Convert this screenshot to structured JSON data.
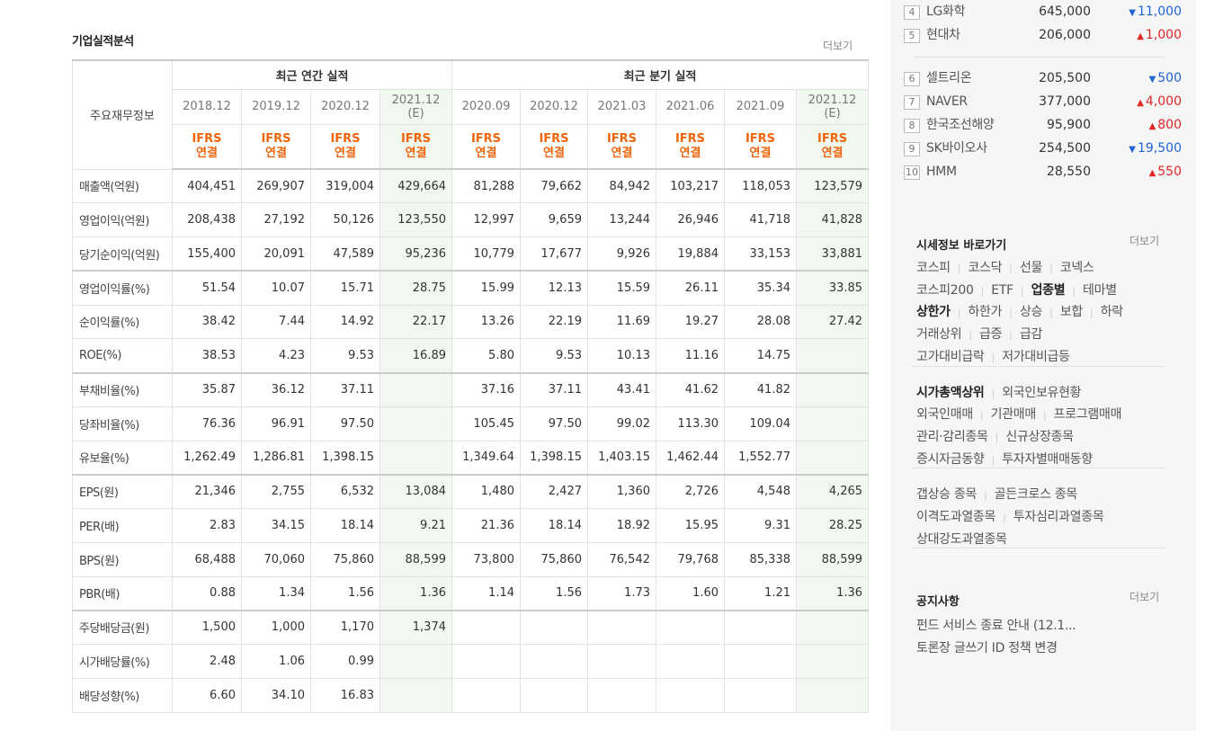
{
  "section": {
    "title": "기업실적분석",
    "more": "더보기"
  },
  "table": {
    "corner": "주요재무정보",
    "groups": [
      {
        "title": "최근 연간 실적",
        "span": 4
      },
      {
        "title": "최근 분기 실적",
        "span": 6
      }
    ],
    "periods": [
      [
        "2018.12"
      ],
      [
        "2019.12"
      ],
      [
        "2020.12"
      ],
      [
        "2021.12",
        "(E)"
      ],
      [
        "2020.09"
      ],
      [
        "2020.12"
      ],
      [
        "2021.03"
      ],
      [
        "2021.06"
      ],
      [
        "2021.09"
      ],
      [
        "2021.12",
        "(E)"
      ]
    ],
    "estimate": [
      false,
      false,
      false,
      true,
      false,
      false,
      false,
      false,
      false,
      true
    ],
    "basis": [
      "IFRS",
      "연결"
    ],
    "rows": [
      {
        "label": "매출액(억원)",
        "values": [
          "404,451",
          "269,907",
          "319,004",
          "429,664",
          "81,288",
          "79,662",
          "84,942",
          "103,217",
          "118,053",
          "123,579"
        ]
      },
      {
        "label": "영업이익(억원)",
        "values": [
          "208,438",
          "27,192",
          "50,126",
          "123,550",
          "12,997",
          "9,659",
          "13,244",
          "26,946",
          "41,718",
          "41,828"
        ]
      },
      {
        "label": "당기순이익(억원)",
        "values": [
          "155,400",
          "20,091",
          "47,589",
          "95,236",
          "10,779",
          "17,677",
          "9,926",
          "19,884",
          "33,153",
          "33,881"
        ],
        "group_end": true
      },
      {
        "label": "영업이익률(%)",
        "values": [
          "51.54",
          "10.07",
          "15.71",
          "28.75",
          "15.99",
          "12.13",
          "15.59",
          "26.11",
          "35.34",
          "33.85"
        ]
      },
      {
        "label": "순이익률(%)",
        "values": [
          "38.42",
          "7.44",
          "14.92",
          "22.17",
          "13.26",
          "22.19",
          "11.69",
          "19.27",
          "28.08",
          "27.42"
        ]
      },
      {
        "label": "ROE(%)",
        "values": [
          "38.53",
          "4.23",
          "9.53",
          "16.89",
          "5.80",
          "9.53",
          "10.13",
          "11.16",
          "14.75",
          null
        ],
        "group_end": true
      },
      {
        "label": "부채비율(%)",
        "values": [
          "35.87",
          "36.12",
          "37.11",
          null,
          "37.16",
          "37.11",
          "43.41",
          "41.62",
          "41.82",
          null
        ]
      },
      {
        "label": "당좌비율(%)",
        "values": [
          "76.36",
          "96.91",
          "97.50",
          null,
          "105.45",
          "97.50",
          "99.02",
          "113.30",
          "109.04",
          null
        ]
      },
      {
        "label": "유보율(%)",
        "values": [
          "1,262.49",
          "1,286.81",
          "1,398.15",
          null,
          "1,349.64",
          "1,398.15",
          "1,403.15",
          "1,462.44",
          "1,552.77",
          null
        ],
        "group_end": true
      },
      {
        "label": "EPS(원)",
        "values": [
          "21,346",
          "2,755",
          "6,532",
          "13,084",
          "1,480",
          "2,427",
          "1,360",
          "2,726",
          "4,548",
          "4,265"
        ]
      },
      {
        "label": "PER(배)",
        "values": [
          "2.83",
          "34.15",
          "18.14",
          "9.21",
          "21.36",
          "18.14",
          "18.92",
          "15.95",
          "9.31",
          "28.25"
        ]
      },
      {
        "label": "BPS(원)",
        "values": [
          "68,488",
          "70,060",
          "75,860",
          "88,599",
          "73,800",
          "75,860",
          "76,542",
          "79,768",
          "85,338",
          "88,599"
        ]
      },
      {
        "label": "PBR(배)",
        "values": [
          "0.88",
          "1.34",
          "1.56",
          "1.36",
          "1.14",
          "1.56",
          "1.73",
          "1.60",
          "1.21",
          "1.36"
        ],
        "group_end": true
      },
      {
        "label": "주당배당금(원)",
        "values": [
          "1,500",
          "1,000",
          "1,170",
          "1,374",
          null,
          null,
          null,
          null,
          null,
          null
        ]
      },
      {
        "label": "시가배당률(%)",
        "values": [
          "2.48",
          "1.06",
          "0.99",
          null,
          null,
          null,
          null,
          null,
          null,
          null
        ]
      },
      {
        "label": "배당성향(%)",
        "values": [
          "6.60",
          "34.10",
          "16.83",
          null,
          null,
          null,
          null,
          null,
          null,
          null
        ]
      }
    ]
  },
  "ranking": [
    {
      "rank": "4",
      "name": "LG화학",
      "price": "645,000",
      "change": "11,000",
      "dir": "down"
    },
    {
      "rank": "5",
      "name": "현대차",
      "price": "206,000",
      "change": "1,000",
      "dir": "up"
    },
    {
      "rank": "6",
      "name": "셀트리온",
      "price": "205,500",
      "change": "500",
      "dir": "down"
    },
    {
      "rank": "7",
      "name": "NAVER",
      "price": "377,000",
      "change": "4,000",
      "dir": "up"
    },
    {
      "rank": "8",
      "name": "한국조선해양",
      "price": "95,900",
      "change": "800",
      "dir": "up"
    },
    {
      "rank": "9",
      "name": "SK바이오사",
      "price": "254,500",
      "change": "19,500",
      "dir": "down"
    },
    {
      "rank": "10",
      "name": "HMM",
      "price": "28,550",
      "change": "550",
      "dir": "up"
    }
  ],
  "market_links": {
    "title": "시세정보 바로가기",
    "more": "더보기",
    "groups": [
      [
        [
          "코스피",
          "코스닥",
          "선물",
          "코넥스"
        ],
        [
          "코스피200",
          "ETF",
          {
            "text": "업종별",
            "bold": true
          },
          "테마별"
        ],
        [
          {
            "text": "상한가",
            "bold": true
          },
          "하한가",
          "상승",
          "보합",
          "하락"
        ],
        [
          "거래상위",
          "급증",
          "급감"
        ],
        [
          "고가대비급락",
          "저가대비급등"
        ]
      ],
      [
        [
          {
            "text": "시가총액상위",
            "bold": true
          },
          "외국인보유현황"
        ],
        [
          "외국인매매",
          "기관매매",
          "프로그램매매"
        ],
        [
          "관리·감리종목",
          "신규상장종목"
        ],
        [
          "증시자금동향",
          "투자자별매매동향"
        ]
      ],
      [
        [
          "갭상승 종목",
          "골든크로스 종목"
        ],
        [
          "이격도과열종목",
          "투자심리과열종목"
        ],
        [
          "상대강도과열종목"
        ]
      ]
    ]
  },
  "notice": {
    "title": "공지사항",
    "more": "더보기",
    "items": [
      "펀드 서비스 종료 안내 (12.1...",
      "토론장 글쓰기 ID 정책 변경"
    ]
  }
}
